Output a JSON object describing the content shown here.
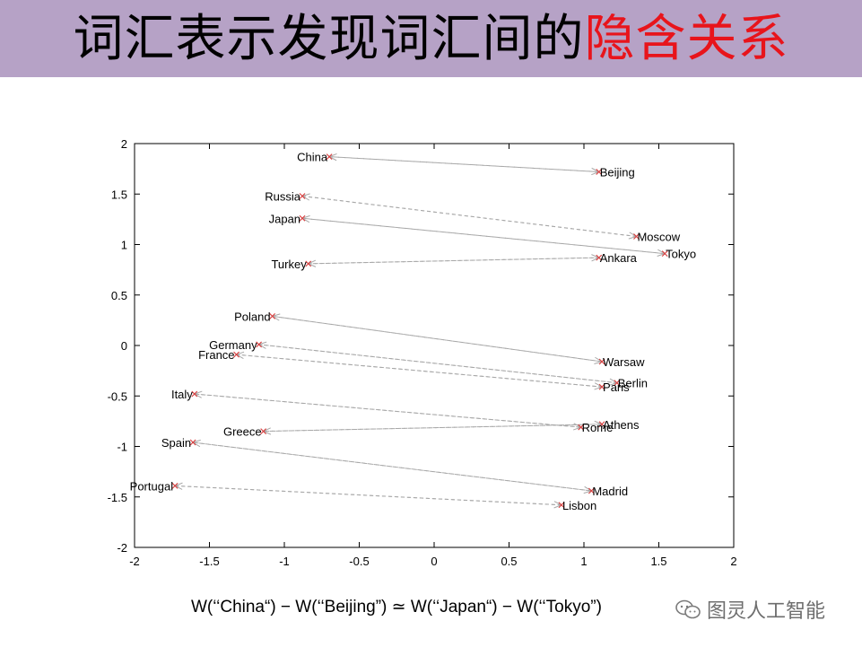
{
  "slide": {
    "title_part1": "词汇表示发现词汇间的",
    "title_part2": "隐含关系",
    "formula": "W(‘‘China“) − W(‘‘Beijing”) ≃ W(‘‘Japan“) − W(‘‘Tokyo”)",
    "watermark": "图灵人工智能"
  },
  "colors": {
    "title_bg": "#b6a2c6",
    "highlight": "#e8141b",
    "arrow": "#a8a8a8",
    "marker": "#d94040"
  },
  "chart_data": {
    "type": "scatter",
    "xlim": [
      -2,
      2
    ],
    "ylim": [
      -2,
      2
    ],
    "xticks": [
      "-2",
      "-1.5",
      "-1",
      "-0.5",
      "0",
      "0.5",
      "1",
      "1.5",
      "2"
    ],
    "yticks": [
      "2",
      "1.5",
      "1",
      "0.5",
      "0",
      "-0.5",
      "-1",
      "-1.5",
      "-2"
    ],
    "grid": false,
    "points": [
      {
        "label": "China",
        "x": -0.7,
        "y": 1.87,
        "anchor": "end"
      },
      {
        "label": "Beijing",
        "x": 1.1,
        "y": 1.72,
        "anchor": "start"
      },
      {
        "label": "Russia",
        "x": -0.88,
        "y": 1.48,
        "anchor": "end"
      },
      {
        "label": "Japan",
        "x": -0.88,
        "y": 1.26,
        "anchor": "end"
      },
      {
        "label": "Moscow",
        "x": 1.35,
        "y": 1.08,
        "anchor": "start"
      },
      {
        "label": "Tokyo",
        "x": 1.54,
        "y": 0.91,
        "anchor": "start"
      },
      {
        "label": "Ankara",
        "x": 1.1,
        "y": 0.87,
        "anchor": "start"
      },
      {
        "label": "Turkey",
        "x": -0.84,
        "y": 0.81,
        "anchor": "end"
      },
      {
        "label": "Poland",
        "x": -1.08,
        "y": 0.29,
        "anchor": "end"
      },
      {
        "label": "Germany",
        "x": -1.17,
        "y": 0.01,
        "anchor": "end"
      },
      {
        "label": "France",
        "x": -1.32,
        "y": -0.09,
        "anchor": "end"
      },
      {
        "label": "Warsaw",
        "x": 1.12,
        "y": -0.16,
        "anchor": "start"
      },
      {
        "label": "Berlin",
        "x": 1.22,
        "y": -0.37,
        "anchor": "start"
      },
      {
        "label": "Paris",
        "x": 1.12,
        "y": -0.41,
        "anchor": "start"
      },
      {
        "label": "Italy",
        "x": -1.6,
        "y": -0.48,
        "anchor": "end"
      },
      {
        "label": "Athens",
        "x": 1.12,
        "y": -0.78,
        "anchor": "start"
      },
      {
        "label": "Rome",
        "x": 0.98,
        "y": -0.81,
        "anchor": "start"
      },
      {
        "label": "Greece",
        "x": -1.14,
        "y": -0.85,
        "anchor": "end"
      },
      {
        "label": "Spain",
        "x": -1.61,
        "y": -0.96,
        "anchor": "end"
      },
      {
        "label": "Madrid",
        "x": 1.05,
        "y": -1.44,
        "anchor": "start"
      },
      {
        "label": "Portugal",
        "x": -1.73,
        "y": -1.39,
        "anchor": "end"
      },
      {
        "label": "Lisbon",
        "x": 0.85,
        "y": -1.58,
        "anchor": "start"
      }
    ],
    "arrows": [
      {
        "from": "Beijing",
        "to": "China"
      },
      {
        "from": "China",
        "to": "Beijing"
      },
      {
        "from": "Moscow",
        "to": "Russia"
      },
      {
        "from": "Russia",
        "to": "Moscow"
      },
      {
        "from": "Tokyo",
        "to": "Japan"
      },
      {
        "from": "Japan",
        "to": "Tokyo"
      },
      {
        "from": "Ankara",
        "to": "Turkey"
      },
      {
        "from": "Turkey",
        "to": "Ankara"
      },
      {
        "from": "Warsaw",
        "to": "Poland"
      },
      {
        "from": "Poland",
        "to": "Warsaw"
      },
      {
        "from": "Berlin",
        "to": "Germany"
      },
      {
        "from": "Germany",
        "to": "Berlin"
      },
      {
        "from": "Paris",
        "to": "France"
      },
      {
        "from": "France",
        "to": "Paris"
      },
      {
        "from": "Rome",
        "to": "Italy"
      },
      {
        "from": "Italy",
        "to": "Rome"
      },
      {
        "from": "Athens",
        "to": "Greece"
      },
      {
        "from": "Greece",
        "to": "Athens"
      },
      {
        "from": "Madrid",
        "to": "Spain"
      },
      {
        "from": "Spain",
        "to": "Madrid"
      },
      {
        "from": "Lisbon",
        "to": "Portugal"
      },
      {
        "from": "Portugal",
        "to": "Lisbon"
      }
    ]
  }
}
